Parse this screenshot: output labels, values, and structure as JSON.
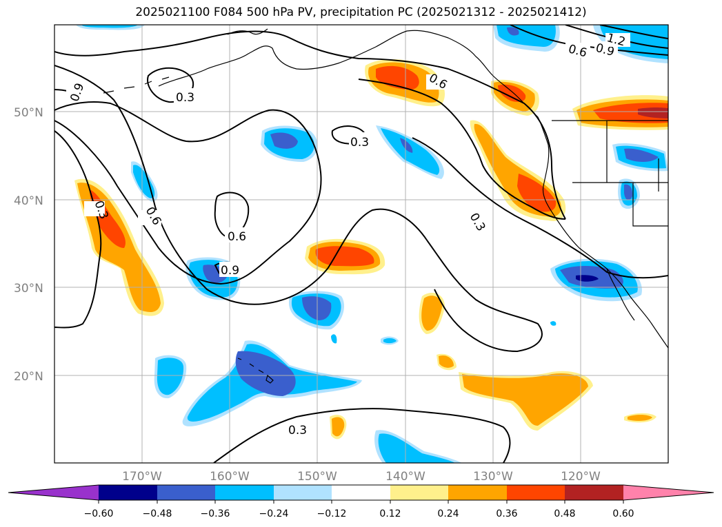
{
  "title": "2025021100 F084 500 hPa PV, precipitation PC (2025021312 - 2025021412)",
  "latitude_labels": [
    "50°N",
    "40°N",
    "30°N",
    "20°N"
  ],
  "longitude_labels": [
    "170°W",
    "160°W",
    "150°W",
    "140°W",
    "130°W",
    "120°W"
  ],
  "contour_labels": [
    "0.3",
    "0.6",
    "0.9",
    "1.2"
  ],
  "colorbar": {
    "ticks": [
      "−0.60",
      "−0.48",
      "−0.36",
      "−0.24",
      "−0.12",
      "0.12",
      "0.24",
      "0.36",
      "0.48",
      "0.60"
    ],
    "colors": {
      "under": "#9932cc",
      "neg_060_048": "#00008b",
      "neg_048_036": "#3a5fcd",
      "neg_036_024": "#00bfff",
      "neg_024_012": "#b0e2ff",
      "neutral": "#ffffff",
      "pos_012_024": "#fff08c",
      "pos_024_036": "#ffa500",
      "pos_036_048": "#ff4500",
      "pos_048_060": "#b22222",
      "over": "#ff82ab"
    }
  }
}
